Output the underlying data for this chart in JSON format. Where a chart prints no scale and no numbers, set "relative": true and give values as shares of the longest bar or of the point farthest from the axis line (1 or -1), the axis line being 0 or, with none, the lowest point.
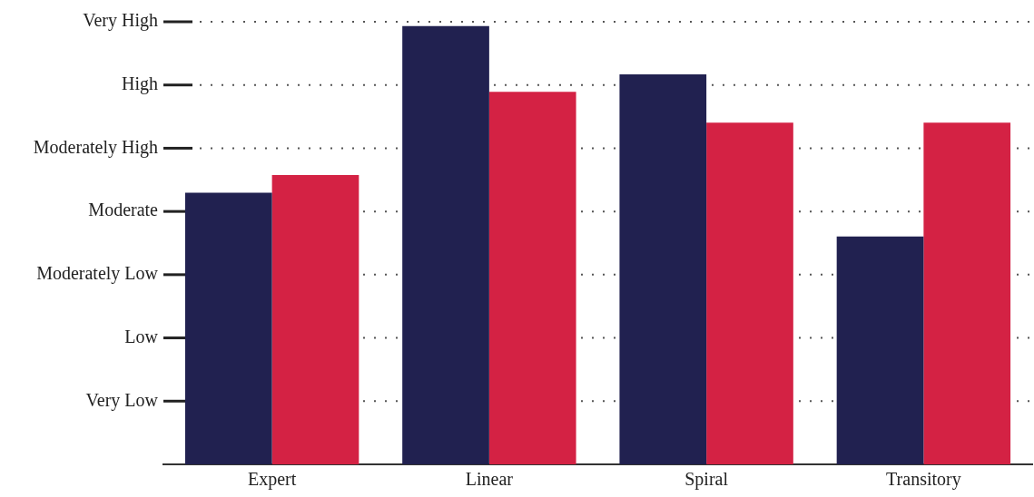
{
  "chart_data": {
    "type": "bar",
    "categories": [
      "Expert",
      "Linear",
      "Spiral",
      "Transitory"
    ],
    "relative": true,
    "series": [
      {
        "color": "#212150",
        "values": [
          0.62,
          1,
          0.89,
          0.52
        ]
      },
      {
        "color": "#d42244",
        "values": [
          0.66,
          0.85,
          0.78,
          0.78
        ]
      }
    ],
    "annotations": [
      "Very High",
      "High",
      "Moderately High",
      "Moderate",
      "Moderately Low",
      "Low",
      "Very Low"
    ],
    "grid": "y",
    "legend": false
  }
}
